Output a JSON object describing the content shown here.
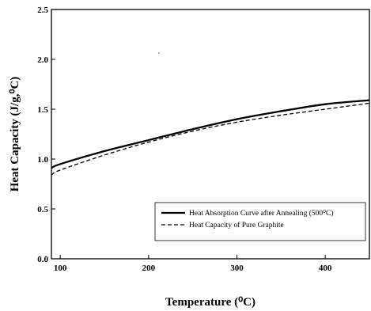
{
  "chart_data": {
    "type": "line",
    "title": "",
    "xlabel": "Temperature (⁰C)",
    "ylabel": "Heat Capacity (J/g,⁰C)",
    "xlim": [
      90,
      450
    ],
    "ylim": [
      0.0,
      2.5
    ],
    "xticks": [
      100,
      200,
      300,
      400
    ],
    "xtick_labels": [
      "100",
      "200",
      "300",
      "400"
    ],
    "yticks": [
      0.0,
      0.5,
      1.0,
      1.5,
      2.0,
      2.5
    ],
    "ytick_labels": [
      "0.0",
      "0.5",
      "1.0",
      "1.5",
      "2.0",
      "2.5"
    ],
    "grid": false,
    "legend_position": "lower-right",
    "series": [
      {
        "name": "Heat Absorption Curve after Annealing (500⁰C)",
        "style": "solid",
        "color": "#000000",
        "x": [
          90,
          100,
          150,
          200,
          250,
          300,
          350,
          400,
          450
        ],
        "y": [
          0.91,
          0.95,
          1.08,
          1.19,
          1.3,
          1.4,
          1.48,
          1.55,
          1.59
        ]
      },
      {
        "name": "Heat Capacity of Pure Graphite",
        "style": "dashed",
        "color": "#000000",
        "x": [
          90,
          100,
          150,
          200,
          250,
          300,
          350,
          400,
          450
        ],
        "y": [
          0.84,
          0.89,
          1.04,
          1.17,
          1.28,
          1.37,
          1.44,
          1.5,
          1.56
        ]
      }
    ]
  }
}
